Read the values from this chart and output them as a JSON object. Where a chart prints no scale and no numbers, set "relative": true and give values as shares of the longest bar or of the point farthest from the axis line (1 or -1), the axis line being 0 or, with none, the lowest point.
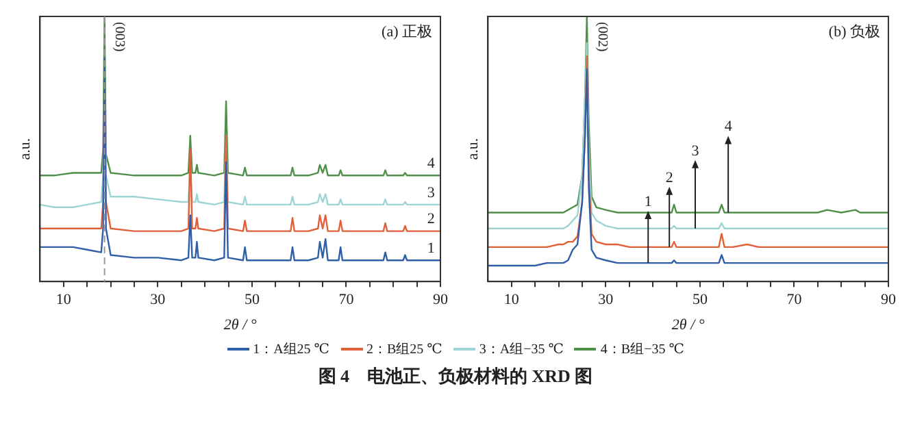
{
  "chart_data": [
    {
      "type": "line",
      "title": "图 4　电池正、负极材料的 XRD 图",
      "xlabel": "2θ / °",
      "ylabel": "a.u.",
      "relative": true,
      "legend": "bottom",
      "marker": "none",
      "line_style": "solid",
      "grid": false,
      "xlim": [
        5,
        90
      ],
      "xticks": [
        10,
        {
          "value": 15,
          "label": null
        },
        {
          "value": 20,
          "label": null
        },
        {
          "value": 25,
          "label": null
        },
        30,
        {
          "value": 35,
          "label": null
        },
        {
          "value": 40,
          "label": null
        },
        {
          "value": 45,
          "label": null
        },
        50,
        {
          "value": 55,
          "label": null
        },
        {
          "value": 60,
          "label": null
        },
        {
          "value": 65,
          "label": null
        },
        70,
        {
          "value": 75,
          "label": null
        },
        {
          "value": 80,
          "label": null
        },
        {
          "value": 85,
          "label": null
        },
        90
      ],
      "x": [
        5,
        8,
        12,
        15,
        18,
        18.4,
        18.7,
        19,
        20,
        25,
        30,
        35,
        36.5,
        36.9,
        37.3,
        38,
        38.3,
        38.6,
        42,
        44.1,
        44.5,
        44.9,
        48.1,
        48.5,
        48.9,
        55,
        58.2,
        58.6,
        59,
        62,
        64,
        64.4,
        65,
        65.6,
        66.1,
        68.4,
        68.8,
        69.2,
        75,
        77.9,
        78.3,
        78.7,
        82.1,
        82.5,
        82.9,
        86,
        90
      ],
      "ref_lines": [
        {
          "axis": "x",
          "value": 18.7,
          "line_style": "dashed",
          "color": "#999999"
        }
      ],
      "annotations": [
        "(a) 正极",
        {
          "text": "(003)",
          "x": 18.7,
          "y": 1.0
        },
        {
          "text": "1",
          "x": 88,
          "y": 0.08
        },
        {
          "text": "2",
          "x": 88,
          "y": 0.19
        },
        {
          "text": "3",
          "x": 88,
          "y": 0.29
        },
        {
          "text": "4",
          "x": 88,
          "y": 0.4
        }
      ],
      "series": [
        {
          "name": "1：A组25 ℃",
          "color": "#2f5fa8",
          "values": [
            0.13,
            0.13,
            0.13,
            0.12,
            0.11,
            0.2,
            0.84,
            0.2,
            0.1,
            0.09,
            0.09,
            0.08,
            0.09,
            0.25,
            0.09,
            0.09,
            0.15,
            0.09,
            0.08,
            0.09,
            0.45,
            0.09,
            0.08,
            0.13,
            0.08,
            0.08,
            0.08,
            0.13,
            0.08,
            0.08,
            0.09,
            0.15,
            0.09,
            0.16,
            0.08,
            0.08,
            0.13,
            0.08,
            0.08,
            0.08,
            0.11,
            0.08,
            0.08,
            0.1,
            0.08,
            0.08,
            0.08
          ]
        },
        {
          "name": "2：B组25 ℃",
          "color": "#e0603a",
          "values": [
            0.2,
            0.2,
            0.2,
            0.2,
            0.2,
            0.3,
            0.8,
            0.3,
            0.2,
            0.19,
            0.19,
            0.19,
            0.2,
            0.5,
            0.2,
            0.2,
            0.24,
            0.2,
            0.19,
            0.2,
            0.55,
            0.2,
            0.19,
            0.23,
            0.19,
            0.19,
            0.19,
            0.24,
            0.19,
            0.19,
            0.2,
            0.25,
            0.2,
            0.25,
            0.19,
            0.19,
            0.23,
            0.19,
            0.19,
            0.19,
            0.22,
            0.19,
            0.19,
            0.21,
            0.19,
            0.19,
            0.19
          ]
        },
        {
          "name": "3：A组−35 ℃",
          "color": "#9fd4d4",
          "values": [
            0.29,
            0.28,
            0.28,
            0.29,
            0.3,
            0.4,
            0.8,
            0.4,
            0.32,
            0.32,
            0.31,
            0.3,
            0.3,
            0.45,
            0.3,
            0.3,
            0.33,
            0.3,
            0.29,
            0.3,
            0.55,
            0.3,
            0.29,
            0.32,
            0.29,
            0.29,
            0.29,
            0.32,
            0.29,
            0.29,
            0.3,
            0.33,
            0.3,
            0.33,
            0.29,
            0.29,
            0.31,
            0.29,
            0.29,
            0.29,
            0.31,
            0.29,
            0.29,
            0.3,
            0.29,
            0.29,
            0.29
          ]
        },
        {
          "name": "4：B组−35 ℃",
          "color": "#4f8f4a",
          "values": [
            0.4,
            0.4,
            0.41,
            0.41,
            0.41,
            0.5,
            1.0,
            0.48,
            0.41,
            0.4,
            0.4,
            0.4,
            0.41,
            0.55,
            0.41,
            0.41,
            0.44,
            0.41,
            0.4,
            0.41,
            0.68,
            0.41,
            0.4,
            0.43,
            0.4,
            0.4,
            0.4,
            0.43,
            0.4,
            0.4,
            0.41,
            0.44,
            0.41,
            0.44,
            0.4,
            0.4,
            0.42,
            0.4,
            0.4,
            0.4,
            0.42,
            0.4,
            0.4,
            0.41,
            0.4,
            0.4,
            0.4
          ]
        }
      ]
    },
    {
      "type": "line",
      "xlabel": "2θ / °",
      "ylabel": "a.u.",
      "relative": true,
      "marker": "none",
      "line_style": "solid",
      "grid": false,
      "xlim": [
        5,
        90
      ],
      "xticks": [
        10,
        {
          "value": 15,
          "label": null
        },
        {
          "value": 20,
          "label": null
        },
        {
          "value": 25,
          "label": null
        },
        30,
        {
          "value": 35,
          "label": null
        },
        {
          "value": 40,
          "label": null
        },
        {
          "value": 45,
          "label": null
        },
        50,
        {
          "value": 55,
          "label": null
        },
        {
          "value": 60,
          "label": null
        },
        {
          "value": 65,
          "label": null
        },
        70,
        {
          "value": 75,
          "label": null
        },
        {
          "value": 80,
          "label": null
        },
        {
          "value": 85,
          "label": null
        },
        90
      ],
      "x": [
        5,
        7.5,
        10,
        12.5,
        15,
        17.5,
        20,
        21,
        22,
        23,
        24,
        25,
        25.6,
        26,
        26.4,
        27,
        28,
        30,
        32.5,
        35,
        37.5,
        40,
        42,
        44,
        44.5,
        45,
        47.5,
        50,
        52,
        54,
        54.6,
        55.2,
        57,
        60,
        62.5,
        65,
        67.5,
        70,
        72.5,
        75,
        77,
        80,
        83,
        84,
        86,
        88,
        90
      ],
      "annotations": [
        "(b) 负极",
        {
          "text": "(002)",
          "x": 26,
          "y": 1.0
        },
        {
          "text": "1",
          "x": 39,
          "y": 0.07
        },
        {
          "text": "2",
          "x": 43.5,
          "y": 0.13
        },
        {
          "text": "3",
          "x": 49,
          "y": 0.2
        },
        {
          "text": "4",
          "x": 56,
          "y": 0.26
        }
      ],
      "series": [
        {
          "color": "#2f5fa8",
          "values": [
            0.06,
            0.06,
            0.06,
            0.06,
            0.06,
            0.07,
            0.07,
            0.07,
            0.08,
            0.12,
            0.14,
            0.3,
            0.55,
            0.8,
            0.35,
            0.12,
            0.09,
            0.08,
            0.07,
            0.07,
            0.07,
            0.07,
            0.07,
            0.07,
            0.08,
            0.07,
            0.07,
            0.07,
            0.07,
            0.07,
            0.1,
            0.07,
            0.07,
            0.07,
            0.07,
            0.07,
            0.07,
            0.07,
            0.07,
            0.07,
            0.07,
            0.07,
            0.07,
            0.07,
            0.07,
            0.07,
            0.07
          ]
        },
        {
          "color": "#e0603a",
          "values": [
            0.13,
            0.13,
            0.13,
            0.13,
            0.13,
            0.13,
            0.14,
            0.14,
            0.15,
            0.15,
            0.17,
            0.3,
            0.55,
            0.85,
            0.4,
            0.18,
            0.15,
            0.14,
            0.14,
            0.13,
            0.13,
            0.13,
            0.13,
            0.13,
            0.15,
            0.13,
            0.13,
            0.13,
            0.13,
            0.13,
            0.18,
            0.13,
            0.13,
            0.14,
            0.13,
            0.13,
            0.13,
            0.13,
            0.13,
            0.13,
            0.13,
            0.13,
            0.13,
            0.13,
            0.13,
            0.13,
            0.13
          ]
        },
        {
          "color": "#9fd4d4",
          "values": [
            0.2,
            0.2,
            0.2,
            0.2,
            0.2,
            0.2,
            0.2,
            0.2,
            0.21,
            0.23,
            0.25,
            0.4,
            0.7,
            0.9,
            0.5,
            0.26,
            0.23,
            0.21,
            0.2,
            0.2,
            0.2,
            0.2,
            0.2,
            0.2,
            0.21,
            0.2,
            0.2,
            0.2,
            0.2,
            0.2,
            0.22,
            0.2,
            0.2,
            0.2,
            0.2,
            0.2,
            0.2,
            0.2,
            0.2,
            0.2,
            0.2,
            0.2,
            0.2,
            0.2,
            0.2,
            0.2,
            0.2
          ]
        },
        {
          "color": "#4f8f4a",
          "values": [
            0.26,
            0.26,
            0.26,
            0.26,
            0.26,
            0.26,
            0.26,
            0.26,
            0.27,
            0.28,
            0.29,
            0.4,
            0.7,
            1.0,
            0.6,
            0.32,
            0.28,
            0.27,
            0.26,
            0.26,
            0.26,
            0.26,
            0.26,
            0.26,
            0.29,
            0.26,
            0.26,
            0.26,
            0.26,
            0.26,
            0.29,
            0.26,
            0.26,
            0.26,
            0.26,
            0.26,
            0.26,
            0.26,
            0.26,
            0.26,
            0.27,
            0.26,
            0.27,
            0.26,
            0.26,
            0.26,
            0.26
          ]
        }
      ]
    }
  ]
}
